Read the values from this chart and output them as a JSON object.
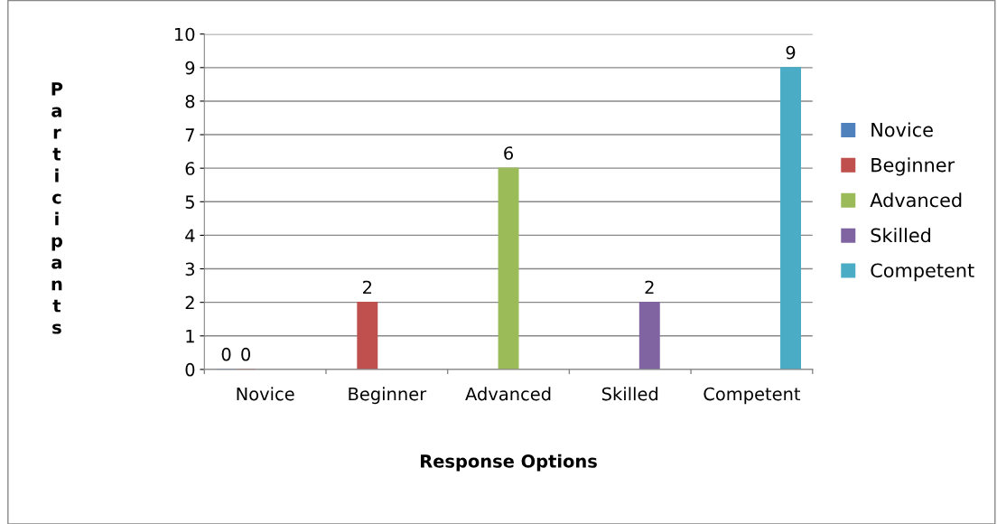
{
  "chart_data": {
    "type": "bar",
    "xlabel": "Response Options",
    "ylabel": "Participants",
    "categories": [
      "Novice",
      "Beginner",
      "Advanced",
      "Skilled",
      "Competent"
    ],
    "series": [
      {
        "name": "Novice",
        "color": "#4f81bd",
        "values": [
          0,
          null,
          null,
          null,
          null
        ]
      },
      {
        "name": "Beginner",
        "color": "#c0504d",
        "values": [
          0,
          2,
          null,
          null,
          null
        ]
      },
      {
        "name": "Advanced",
        "color": "#9bbb59",
        "values": [
          null,
          null,
          6,
          null,
          null
        ]
      },
      {
        "name": "Skilled",
        "color": "#8064a2",
        "values": [
          null,
          null,
          null,
          2,
          null
        ]
      },
      {
        "name": "Competent",
        "color": "#4bacc6",
        "values": [
          null,
          null,
          null,
          null,
          9
        ]
      }
    ],
    "ylim": [
      0,
      10
    ],
    "yticks": [
      0,
      1,
      2,
      3,
      4,
      5,
      6,
      7,
      8,
      9,
      10
    ],
    "grid": "y",
    "legend": "right",
    "data_labels": true
  }
}
